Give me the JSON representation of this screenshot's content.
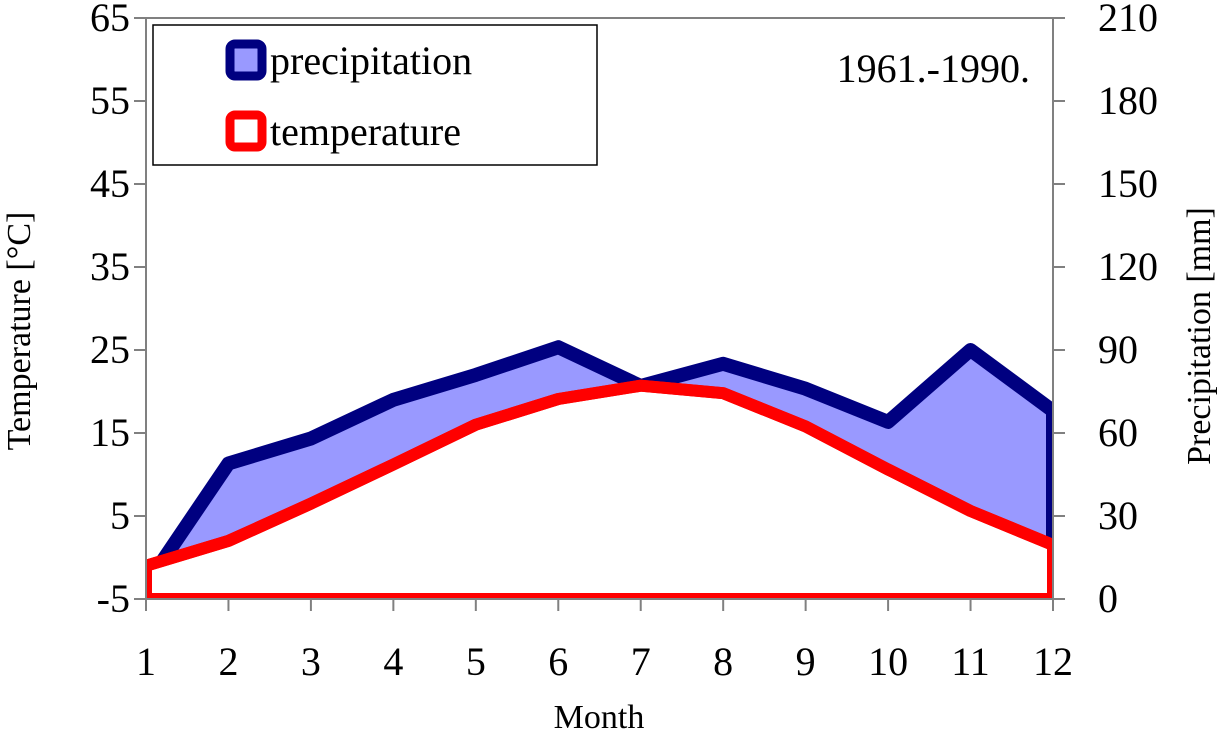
{
  "colors": {
    "precipitation_line": "#000080",
    "precipitation_fill": "#9999ff",
    "temperature_line": "#ff0000",
    "grid_border": "#808080",
    "legend_border": "#000000"
  },
  "chart_data": {
    "type": "area",
    "period_label": "1961.-1990.",
    "xlabel": "Month",
    "ylabel_left": "Temperature [°C]",
    "ylabel_right": "Precipitation [mm]",
    "x": [
      1,
      2,
      3,
      4,
      5,
      6,
      7,
      8,
      9,
      10,
      11,
      12
    ],
    "x_tick_labels": [
      "1",
      "2",
      "3",
      "4",
      "5",
      "6",
      "7",
      "8",
      "9",
      "10",
      "11",
      "12"
    ],
    "ylim_left": [
      -5,
      65
    ],
    "yticks_left": [
      "-5",
      "5",
      "15",
      "25",
      "35",
      "45",
      "55",
      "65"
    ],
    "ylim_right": [
      0,
      210
    ],
    "yticks_right": [
      "0",
      "30",
      "60",
      "90",
      "120",
      "150",
      "180",
      "210"
    ],
    "grid": false,
    "legend_position": "top-left",
    "series": [
      {
        "name": "precipitation",
        "axis": "right",
        "values": [
          5,
          49,
          58,
          72,
          81,
          91,
          77,
          85,
          76,
          64,
          90,
          68
        ]
      },
      {
        "name": "temperature",
        "axis": "left",
        "values": [
          -1.0,
          2.0,
          6.5,
          11.2,
          16.0,
          19.1,
          20.7,
          19.8,
          15.8,
          10.6,
          5.6,
          1.5
        ]
      }
    ]
  }
}
